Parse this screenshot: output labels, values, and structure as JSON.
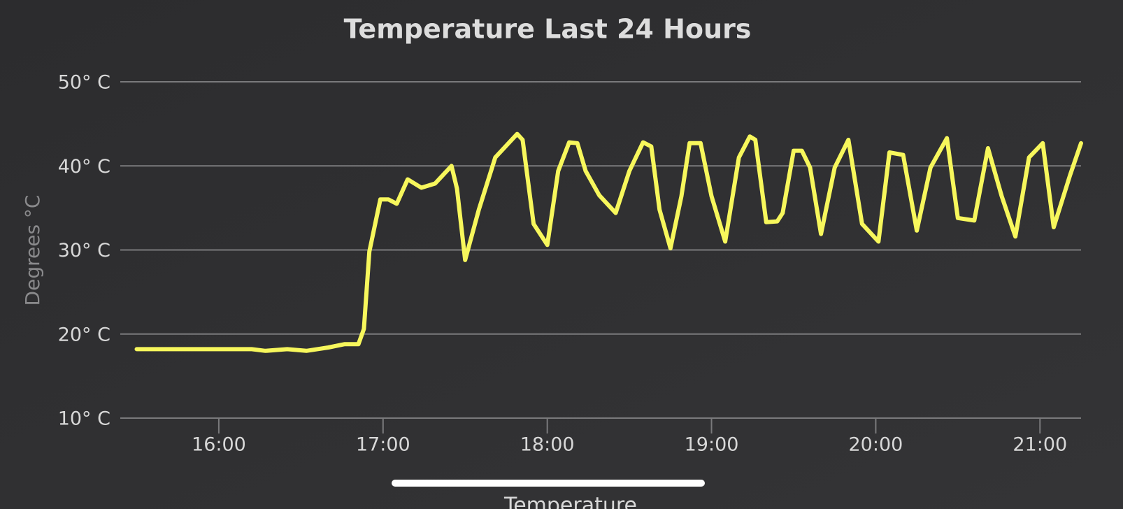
{
  "chart_data": {
    "type": "line",
    "title": "Temperature Last 24 Hours",
    "y_label": "Degrees °C",
    "x": [
      "15:30",
      "16:12",
      "16:17",
      "16:25",
      "16:32",
      "16:40",
      "16:46",
      "16:51",
      "16:53",
      "16:55",
      "16:59",
      "17:02",
      "17:05",
      "17:09",
      "17:14",
      "17:19",
      "17:25",
      "17:27",
      "17:30",
      "17:35",
      "17:41",
      "17:49",
      "17:51",
      "17:55",
      "18:00",
      "18:04",
      "18:08",
      "18:11",
      "18:14",
      "18:19",
      "18:25",
      "18:30",
      "18:35",
      "18:38",
      "18:41",
      "18:45",
      "18:49",
      "18:52",
      "18:56",
      "19:00",
      "19:05",
      "19:10",
      "19:14",
      "19:16",
      "19:20",
      "19:24",
      "19:26",
      "19:30",
      "19:33",
      "19:36",
      "19:40",
      "19:45",
      "19:50",
      "19:55",
      "20:01",
      "20:05",
      "20:10",
      "20:15",
      "20:20",
      "20:26",
      "20:30",
      "20:36",
      "20:41",
      "20:46",
      "20:51",
      "20:56",
      "21:01",
      "21:05",
      "21:11",
      "21:15"
    ],
    "series": [
      {
        "name": "Temperature",
        "color": "#f7f75c",
        "values": [
          18.2,
          18.2,
          18.0,
          18.2,
          18.0,
          18.4,
          18.8,
          18.8,
          20.6,
          29.8,
          36.0,
          36.0,
          35.5,
          38.4,
          37.4,
          37.9,
          40.0,
          37.3,
          28.8,
          34.8,
          41.0,
          43.8,
          43.1,
          33.1,
          30.6,
          39.4,
          42.8,
          42.7,
          39.4,
          36.5,
          34.4,
          39.4,
          42.8,
          42.3,
          34.8,
          30.2,
          36.4,
          42.7,
          42.7,
          36.4,
          31.0,
          41.0,
          43.5,
          43.1,
          33.3,
          33.4,
          34.4,
          41.8,
          41.8,
          39.8,
          31.9,
          39.8,
          43.1,
          33.1,
          31.0,
          41.6,
          41.3,
          32.3,
          39.8,
          43.3,
          33.8,
          33.5,
          42.1,
          36.4,
          31.6,
          41.0,
          42.7,
          32.7,
          38.9,
          42.7
        ]
      }
    ],
    "xlim": [
      "15:24",
      "21:15"
    ],
    "xticks": [
      "16:00",
      "17:00",
      "18:00",
      "19:00",
      "20:00",
      "21:00"
    ],
    "ylim": [
      10,
      50
    ],
    "yticks": [
      {
        "value": 10,
        "label": "10° C"
      },
      {
        "value": 20,
        "label": "20° C"
      },
      {
        "value": 30,
        "label": "30° C"
      },
      {
        "value": 40,
        "label": "40° C"
      },
      {
        "value": 50,
        "label": "50° C"
      }
    ],
    "grid": true,
    "legend": "bottom"
  }
}
